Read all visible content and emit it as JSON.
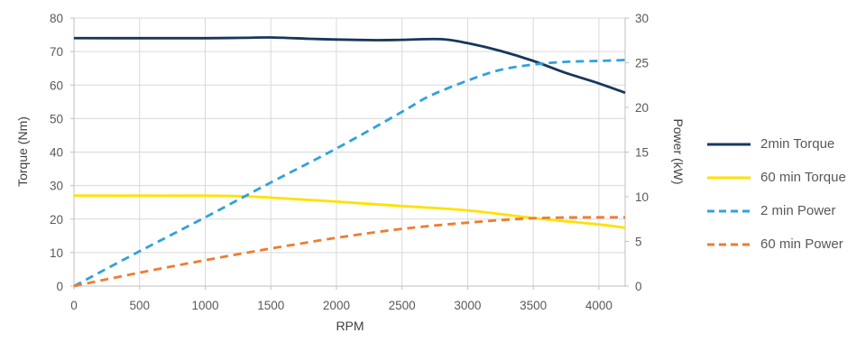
{
  "styles": {
    "background": "#FFFFFF",
    "grid_color": "#D9D9D9",
    "axis_color": "#BFBFBF",
    "tick_label_color": "#595959",
    "axis_title_color": "#404040",
    "legend_text_color": "#595959"
  },
  "chart_data": {
    "type": "line",
    "title": "",
    "xlabel": "RPM",
    "x_max": 4200,
    "x_ticks": [
      0,
      500,
      1000,
      1500,
      2000,
      2500,
      3000,
      3500,
      4000
    ],
    "y_left": {
      "label": "Torque (Nm)",
      "max": 80,
      "ticks": [
        0,
        10,
        20,
        30,
        40,
        50,
        60,
        70,
        80
      ]
    },
    "y_right": {
      "label": "Power (kW)",
      "max": 30,
      "ticks": [
        0,
        5,
        10,
        15,
        20,
        25,
        30
      ]
    },
    "grid": true,
    "legend_position": "right",
    "series": [
      {
        "name": "2min Torque",
        "axis": "left",
        "style": "solid",
        "color": "#17375E",
        "points": [
          [
            0,
            74
          ],
          [
            500,
            74
          ],
          [
            1000,
            74
          ],
          [
            1300,
            74.1
          ],
          [
            1500,
            74.2
          ],
          [
            1800,
            73.8
          ],
          [
            2000,
            73.6
          ],
          [
            2300,
            73.4
          ],
          [
            2500,
            73.5
          ],
          [
            2800,
            73.7
          ],
          [
            3000,
            72.5
          ],
          [
            3250,
            70.2
          ],
          [
            3500,
            67.2
          ],
          [
            3750,
            63.6
          ],
          [
            4000,
            60.5
          ],
          [
            4200,
            57.7
          ]
        ]
      },
      {
        "name": "60 min Torque",
        "axis": "left",
        "style": "solid",
        "color": "#FFE100",
        "points": [
          [
            0,
            27
          ],
          [
            500,
            27
          ],
          [
            1000,
            27
          ],
          [
            1300,
            26.8
          ],
          [
            1500,
            26.4
          ],
          [
            2000,
            25.2
          ],
          [
            2500,
            23.9
          ],
          [
            3000,
            22.6
          ],
          [
            3500,
            20.3
          ],
          [
            4000,
            18.4
          ],
          [
            4200,
            17.4
          ]
        ]
      },
      {
        "name": "2 min Power",
        "axis": "right",
        "style": "dashed",
        "color": "#30A2DA",
        "points": [
          [
            0,
            0
          ],
          [
            500,
            3.9
          ],
          [
            1000,
            7.7
          ],
          [
            1500,
            11.6
          ],
          [
            2000,
            15.4
          ],
          [
            2500,
            19.5
          ],
          [
            2700,
            21.2
          ],
          [
            3000,
            23.0
          ],
          [
            3250,
            24.2
          ],
          [
            3500,
            24.8
          ],
          [
            3750,
            25.1
          ],
          [
            4000,
            25.2
          ],
          [
            4200,
            25.3
          ]
        ]
      },
      {
        "name": "60 min Power",
        "axis": "right",
        "style": "dashed",
        "color": "#ED7D31",
        "points": [
          [
            0,
            0
          ],
          [
            500,
            1.5
          ],
          [
            1000,
            2.9
          ],
          [
            1500,
            4.2
          ],
          [
            2000,
            5.4
          ],
          [
            2500,
            6.4
          ],
          [
            3000,
            7.1
          ],
          [
            3500,
            7.6
          ],
          [
            4000,
            7.7
          ],
          [
            4200,
            7.7
          ]
        ]
      }
    ]
  }
}
